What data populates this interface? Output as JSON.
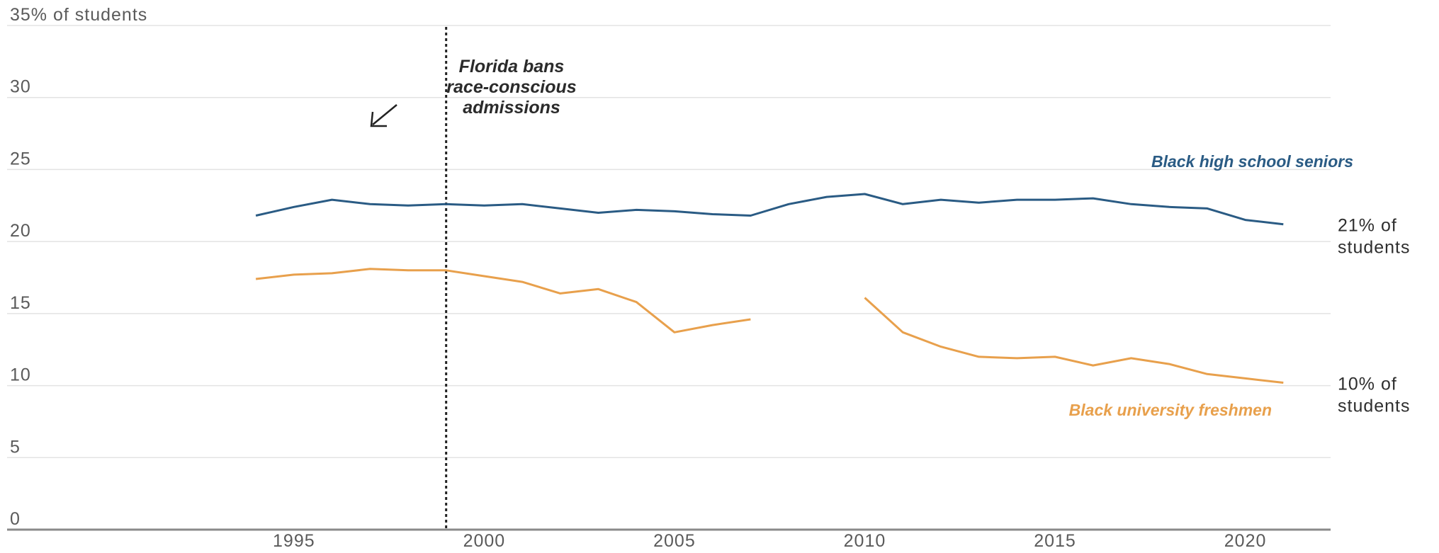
{
  "chart_data": {
    "type": "line",
    "y_axis_title": "35% of students",
    "ylim": [
      0,
      35
    ],
    "y_ticks": [
      {
        "value": 35,
        "label": "35% of students"
      },
      {
        "value": 30,
        "label": "30"
      },
      {
        "value": 25,
        "label": "25"
      },
      {
        "value": 20,
        "label": "20"
      },
      {
        "value": 15,
        "label": "15"
      },
      {
        "value": 10,
        "label": "10"
      },
      {
        "value": 5,
        "label": "5"
      },
      {
        "value": 0,
        "label": "0"
      }
    ],
    "xlim": [
      1991,
      2022
    ],
    "x_ticks": [
      {
        "value": 1995,
        "label": "1995"
      },
      {
        "value": 2000,
        "label": "2000"
      },
      {
        "value": 2005,
        "label": "2005"
      },
      {
        "value": 2010,
        "label": "2010"
      },
      {
        "value": 2015,
        "label": "2015"
      },
      {
        "value": 2020,
        "label": "2020"
      }
    ],
    "grid": "horizontal",
    "series": [
      {
        "name": "Black high school seniors",
        "color": "#2a5b84",
        "end_label": [
          "21% of",
          "students"
        ],
        "points": [
          [
            1994,
            21.8
          ],
          [
            1995,
            22.4
          ],
          [
            1996,
            22.9
          ],
          [
            1997,
            22.6
          ],
          [
            1998,
            22.5
          ],
          [
            1999,
            22.6
          ],
          [
            2000,
            22.5
          ],
          [
            2001,
            22.6
          ],
          [
            2002,
            22.3
          ],
          [
            2003,
            22.0
          ],
          [
            2004,
            22.2
          ],
          [
            2005,
            22.1
          ],
          [
            2006,
            21.9
          ],
          [
            2007,
            21.8
          ],
          [
            2008,
            22.6
          ],
          [
            2009,
            23.1
          ],
          [
            2010,
            23.3
          ],
          [
            2011,
            22.6
          ],
          [
            2012,
            22.9
          ],
          [
            2013,
            22.7
          ],
          [
            2014,
            22.9
          ],
          [
            2015,
            22.9
          ],
          [
            2016,
            23.0
          ],
          [
            2017,
            22.6
          ],
          [
            2018,
            22.4
          ],
          [
            2019,
            22.3
          ],
          [
            2020,
            21.5
          ],
          [
            2021,
            21.2
          ]
        ]
      },
      {
        "name": "Black university freshmen",
        "color": "#e8a04c",
        "end_label": [
          "10% of",
          "students"
        ],
        "points": [
          [
            1994,
            17.4
          ],
          [
            1995,
            17.7
          ],
          [
            1996,
            17.8
          ],
          [
            1997,
            18.1
          ],
          [
            1998,
            18.0
          ],
          [
            1999,
            18.0
          ],
          [
            2000,
            17.6
          ],
          [
            2001,
            17.2
          ],
          [
            2002,
            16.4
          ],
          [
            2003,
            16.7
          ],
          [
            2004,
            15.8
          ],
          [
            2005,
            13.7
          ],
          [
            2006,
            14.2
          ],
          [
            2007,
            14.6
          ],
          [
            2008,
            null
          ],
          [
            2009,
            null
          ],
          [
            2010,
            16.1
          ],
          [
            2011,
            13.7
          ],
          [
            2012,
            12.7
          ],
          [
            2013,
            12.0
          ],
          [
            2014,
            11.9
          ],
          [
            2015,
            12.0
          ],
          [
            2016,
            11.4
          ],
          [
            2017,
            11.9
          ],
          [
            2018,
            11.5
          ],
          [
            2019,
            10.8
          ],
          [
            2020,
            10.5
          ],
          [
            2021,
            10.2
          ]
        ]
      }
    ],
    "annotation": {
      "text": [
        "Florida bans",
        "race-conscious",
        "admissions"
      ],
      "x": 1999
    }
  }
}
